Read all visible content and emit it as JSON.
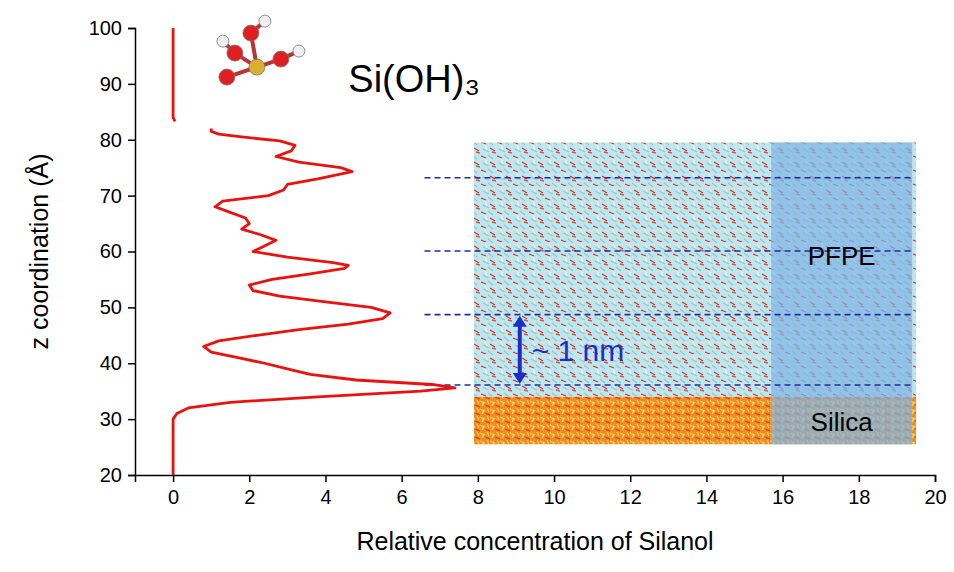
{
  "chart_data": {
    "type": "line",
    "orientation": "horizontal",
    "xlabel": "Relative concentration of Silanol",
    "ylabel": "z coordination (Å)",
    "xlim": [
      -1,
      20
    ],
    "xticks": [
      0,
      2,
      4,
      6,
      8,
      10,
      12,
      14,
      16,
      18,
      20
    ],
    "ylim": [
      20,
      100
    ],
    "yticks": [
      20,
      30,
      40,
      50,
      60,
      70,
      80,
      90,
      100
    ],
    "grid": false,
    "y": [
      20,
      30,
      31,
      32,
      33,
      34,
      35,
      35.6,
      36.2,
      37,
      38,
      39,
      40,
      41,
      42,
      43,
      44,
      45,
      46,
      47,
      48,
      49,
      50,
      51,
      52,
      53,
      54,
      55,
      56,
      57,
      57.5,
      58,
      59,
      60,
      61,
      62,
      63,
      64,
      65,
      66,
      67,
      68,
      69,
      70,
      71,
      72,
      73,
      74.3,
      75,
      76,
      77,
      78,
      79,
      79.8,
      80.5,
      81,
      81.5,
      82,
      82.6,
      83.3,
      84,
      100
    ],
    "series": [
      {
        "color": "#e8130f",
        "line_style": "solid",
        "values": [
          0,
          0,
          0.1,
          0.4,
          1.5,
          3.8,
          6.5,
          7.4,
          6.8,
          4.8,
          3.6,
          3.0,
          2.4,
          1.7,
          1.0,
          0.8,
          1.2,
          2.2,
          3.3,
          4.6,
          5.5,
          5.7,
          5.2,
          4.0,
          2.8,
          2.1,
          2.0,
          2.6,
          3.6,
          4.5,
          4.6,
          4.2,
          3.0,
          2.1,
          2.4,
          2.7,
          2.3,
          1.8,
          2.0,
          1.9,
          1.5,
          1.1,
          1.3,
          2.5,
          2.9,
          3.0,
          3.8,
          4.7,
          4.4,
          3.3,
          2.7,
          3.1,
          3.2,
          2.8,
          1.8,
          1.2,
          1.0,
          1.0,
          null,
          0.05,
          0,
          0
        ]
      }
    ],
    "annotations": {
      "molecule": "Si(OH)₃",
      "pfpe": "PFPE",
      "silica": "Silica",
      "spacing": "~ 1 nm"
    },
    "layer_lines": [
      73.2,
      60.1,
      48.7,
      36.1
    ]
  }
}
